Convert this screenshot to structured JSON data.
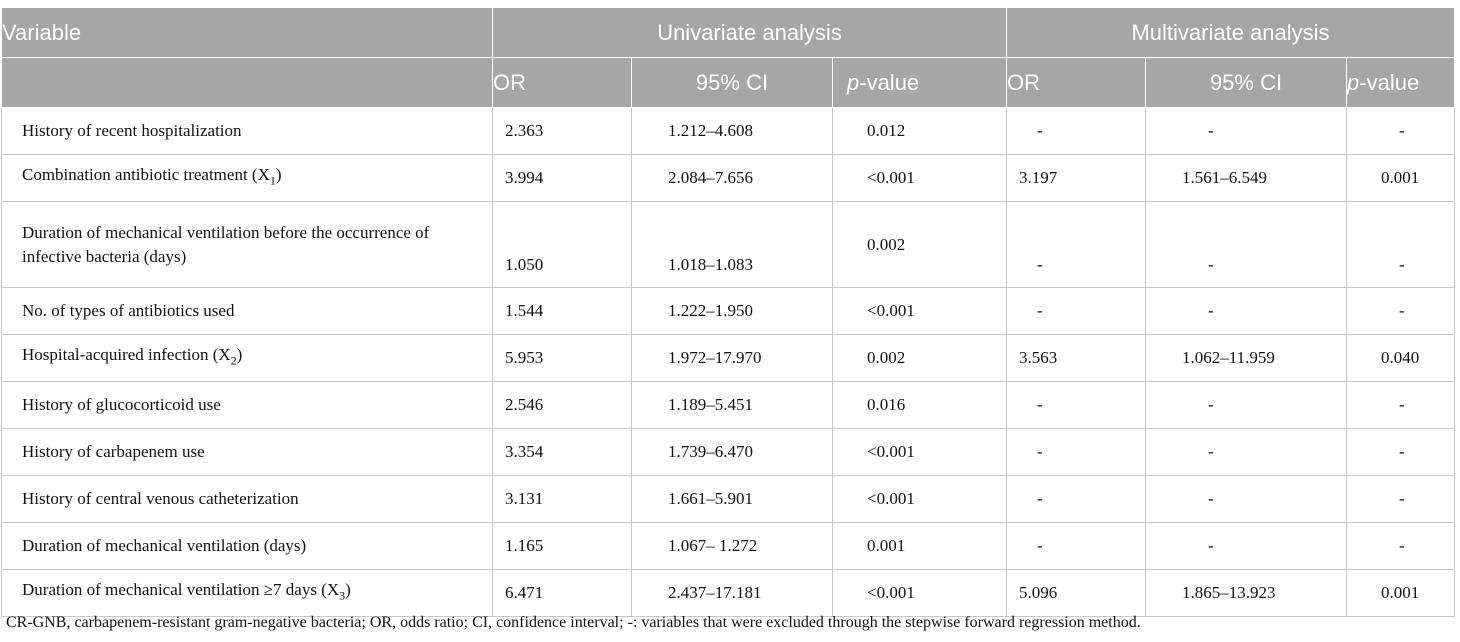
{
  "header": {
    "variable": "Variable",
    "univariate": "Univariate analysis",
    "multivariate": "Multivariate analysis",
    "or": "OR",
    "ci": "95% CI",
    "p_italic": "p",
    "p_rest": "-value"
  },
  "rows": [
    {
      "label": "History of recent hospitalization",
      "sub": "",
      "or": "2.363",
      "ci": "1.212–4.608",
      "p": "0.012",
      "m_or": "-",
      "m_ci": "-",
      "m_p": "-"
    },
    {
      "label": "Combination antibiotic treatment (X",
      "sub": "1",
      "or": "3.994",
      "ci": "2.084–7.656",
      "p": "<0.001",
      "m_or": "3.197",
      "m_ci": "1.561–6.549",
      "m_p": "0.001"
    },
    {
      "label": "Duration of mechanical ventilation before the occurrence of infective bacteria (days)",
      "sub": "",
      "or": "1.050",
      "ci": "1.018–1.083",
      "p": "0.002",
      "m_or": "-",
      "m_ci": "-",
      "m_p": "-"
    },
    {
      "label": "No. of types of antibiotics used",
      "sub": "",
      "or": "1.544",
      "ci": "1.222–1.950",
      "p": "<0.001",
      "m_or": "-",
      "m_ci": "-",
      "m_p": "-"
    },
    {
      "label": "Hospital-acquired infection (X",
      "sub": "2",
      "or": "5.953",
      "ci": "1.972–17.970",
      "p": "0.002",
      "m_or": "3.563",
      "m_ci": "1.062–11.959",
      "m_p": "0.040"
    },
    {
      "label": "History of glucocorticoid use",
      "sub": "",
      "or": "2.546",
      "ci": "1.189–5.451",
      "p": "0.016",
      "m_or": "-",
      "m_ci": "-",
      "m_p": "-"
    },
    {
      "label": "History of carbapenem use",
      "sub": "",
      "or": "3.354",
      "ci": "1.739–6.470",
      "p": "<0.001",
      "m_or": "-",
      "m_ci": "-",
      "m_p": "-"
    },
    {
      "label": "History of central venous catheterization",
      "sub": "",
      "or": "3.131",
      "ci": "1.661–5.901",
      "p": "<0.001",
      "m_or": "-",
      "m_ci": "-",
      "m_p": "-"
    },
    {
      "label": "Duration of mechanical ventilation (days)",
      "sub": "",
      "or": "1.165",
      "ci": "1.067– 1.272",
      "p": "0.001",
      "m_or": "-",
      "m_ci": "-",
      "m_p": "-"
    },
    {
      "label": "Duration of mechanical ventilation ≥7 days (X",
      "sub": "3",
      "or": "6.471",
      "ci": "2.437–17.181",
      "p": "<0.001",
      "m_or": "5.096",
      "m_ci": "1.865–13.923",
      "m_p": "0.001"
    }
  ],
  "footnote": "CR-GNB, carbapenem-resistant gram-negative bacteria; OR, odds ratio; CI, confidence interval; -: variables that were excluded through the stepwise forward regression method."
}
